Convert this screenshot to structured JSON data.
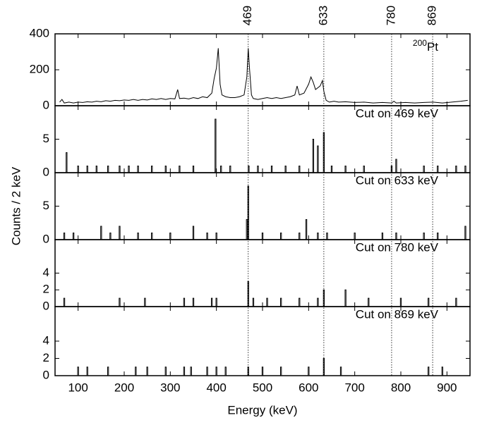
{
  "chart_data": [
    {
      "type": "line",
      "label_sup": "200",
      "label": "Pt",
      "reference_lines": [
        469,
        633,
        780,
        869
      ],
      "color": "#000000",
      "x": [
        60,
        65,
        70,
        80,
        90,
        100,
        110,
        120,
        130,
        140,
        150,
        160,
        170,
        180,
        190,
        200,
        210,
        220,
        230,
        240,
        250,
        260,
        270,
        280,
        290,
        300,
        310,
        316,
        320,
        330,
        340,
        350,
        360,
        370,
        380,
        390,
        395,
        400,
        404,
        408,
        412,
        420,
        430,
        440,
        450,
        460,
        466,
        469,
        472,
        476,
        480,
        490,
        500,
        510,
        520,
        530,
        540,
        550,
        560,
        570,
        575,
        580,
        590,
        600,
        605,
        610,
        615,
        620,
        625,
        630,
        633,
        638,
        645,
        655,
        665,
        680,
        700,
        720,
        740,
        760,
        780,
        785,
        790,
        810,
        830,
        850,
        870,
        890,
        910,
        930,
        945
      ],
      "values": [
        20,
        35,
        15,
        20,
        15,
        20,
        18,
        22,
        20,
        25,
        22,
        28,
        25,
        30,
        28,
        32,
        30,
        35,
        30,
        35,
        32,
        38,
        35,
        40,
        35,
        40,
        38,
        90,
        40,
        42,
        38,
        45,
        40,
        50,
        45,
        70,
        150,
        210,
        320,
        120,
        60,
        50,
        45,
        45,
        50,
        60,
        160,
        320,
        200,
        60,
        40,
        35,
        40,
        45,
        40,
        45,
        40,
        45,
        50,
        60,
        110,
        60,
        70,
        120,
        160,
        130,
        90,
        100,
        110,
        140,
        80,
        30,
        20,
        25,
        20,
        22,
        18,
        20,
        15,
        18,
        15,
        25,
        15,
        18,
        15,
        18,
        20,
        15,
        20,
        25,
        30
      ],
      "xlim": [
        50,
        950
      ],
      "xticks": [
        100,
        200,
        300,
        400,
        500,
        600,
        700,
        800,
        900
      ],
      "ylim": [
        0,
        400
      ],
      "yticks": [
        0,
        200,
        400
      ]
    },
    {
      "type": "bar",
      "label": "Cut on 469 keV",
      "color": "#000000",
      "x": [
        75,
        100,
        120,
        140,
        165,
        190,
        210,
        230,
        260,
        290,
        320,
        350,
        398,
        410,
        430,
        470,
        490,
        520,
        550,
        580,
        610,
        620,
        633,
        650,
        680,
        720,
        780,
        790,
        850,
        880,
        920,
        940
      ],
      "values": [
        3,
        1,
        1,
        1,
        1,
        1,
        1,
        1,
        1,
        1,
        1,
        1,
        8,
        1,
        1,
        1,
        1,
        1,
        1,
        1,
        5,
        4,
        6,
        1,
        1,
        1,
        1,
        2,
        1,
        1,
        1,
        1
      ],
      "xlim": [
        50,
        950
      ],
      "xticks": [
        100,
        200,
        300,
        400,
        500,
        600,
        700,
        800,
        900
      ],
      "ylim": [
        0,
        10
      ],
      "yticks": [
        0,
        5
      ]
    },
    {
      "type": "bar",
      "label": "Cut on 633 keV",
      "ylabel": "Counts / 2 keV",
      "color": "#000000",
      "x": [
        70,
        90,
        150,
        170,
        190,
        230,
        260,
        300,
        350,
        380,
        400,
        466,
        469,
        500,
        540,
        580,
        595,
        620,
        640,
        700,
        760,
        790,
        850,
        880,
        940
      ],
      "values": [
        1,
        1,
        2,
        1,
        2,
        1,
        1,
        1,
        2,
        1,
        1,
        3,
        8,
        1,
        1,
        1,
        3,
        1,
        1,
        1,
        1,
        1,
        1,
        1,
        2
      ],
      "xlim": [
        50,
        950
      ],
      "xticks": [
        100,
        200,
        300,
        400,
        500,
        600,
        700,
        800,
        900
      ],
      "ylim": [
        0,
        10
      ],
      "yticks": [
        0,
        5
      ]
    },
    {
      "type": "bar",
      "label": "Cut on 780 keV",
      "color": "#000000",
      "x": [
        70,
        190,
        245,
        330,
        350,
        390,
        400,
        469,
        480,
        510,
        540,
        580,
        620,
        633,
        680,
        730,
        800,
        860,
        920
      ],
      "values": [
        1,
        1,
        1,
        1,
        1,
        1,
        1,
        3,
        1,
        1,
        1,
        1,
        1,
        2,
        2,
        1,
        1,
        1,
        1
      ],
      "xlim": [
        50,
        950
      ],
      "xticks": [
        100,
        200,
        300,
        400,
        500,
        600,
        700,
        800,
        900
      ],
      "ylim": [
        0,
        8
      ],
      "yticks": [
        0,
        2,
        4
      ]
    },
    {
      "type": "bar",
      "label": "Cut on 869 keV",
      "xlabel": "Energy (keV)",
      "color": "#000000",
      "x": [
        100,
        120,
        165,
        225,
        250,
        290,
        330,
        345,
        380,
        400,
        420,
        469,
        500,
        540,
        600,
        633,
        670,
        860,
        890
      ],
      "values": [
        1,
        1,
        1,
        1,
        1,
        1,
        1,
        1,
        1,
        1,
        1,
        1,
        1,
        1,
        1,
        2,
        1,
        1,
        1
      ],
      "xlim": [
        50,
        950
      ],
      "xticks": [
        100,
        200,
        300,
        400,
        500,
        600,
        700,
        800,
        900
      ],
      "ylim": [
        0,
        8
      ],
      "yticks": [
        0,
        2,
        4
      ]
    }
  ]
}
